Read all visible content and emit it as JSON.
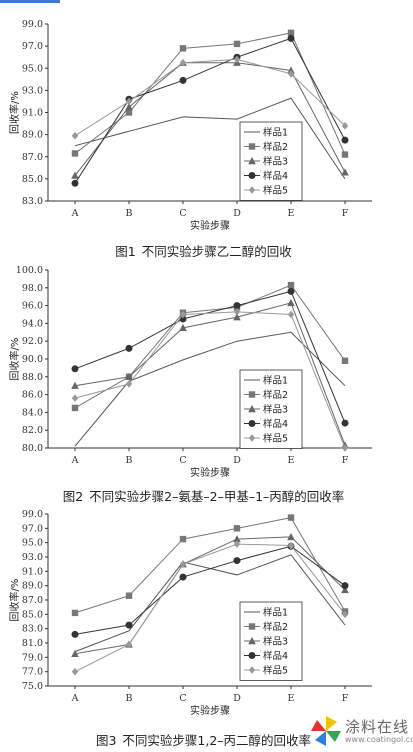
{
  "figures": [
    {
      "caption_num": "图1",
      "caption_text": "不同实验步骤乙二醇的回收"
    },
    {
      "caption_num": "图2",
      "caption_text": "不同实验步骤2–氨基–2–甲基–1–丙醇的回收率"
    },
    {
      "caption_num": "图3",
      "caption_text": "不同实验步骤1,2–丙二醇的回收率"
    }
  ],
  "watermark": {
    "text": "涂料在线",
    "url": "www.coatingol.com"
  },
  "chart_data": [
    {
      "type": "line",
      "xlabel": "实验步骤",
      "ylabel": "回收率/%",
      "categories": [
        "A",
        "B",
        "C",
        "D",
        "E",
        "F"
      ],
      "ylim": [
        83.0,
        99.0
      ],
      "yticks": [
        "83.0",
        "85.0",
        "87.0",
        "89.0",
        "91.0",
        "93.0",
        "95.0",
        "97.0",
        "99.0"
      ],
      "legend_position": "bottom-right",
      "series": [
        {
          "name": "样品1",
          "color": "#555555",
          "marker": "none",
          "values": [
            88.0,
            89.3,
            90.6,
            90.4,
            92.3,
            85.0
          ]
        },
        {
          "name": "样品2",
          "color": "#777777",
          "marker": "square",
          "values": [
            87.3,
            91.0,
            96.8,
            97.2,
            98.2,
            87.2
          ]
        },
        {
          "name": "样品3",
          "color": "#666666",
          "marker": "triangle",
          "values": [
            85.3,
            91.5,
            95.5,
            95.5,
            94.8,
            85.6
          ]
        },
        {
          "name": "样品4",
          "color": "#333333",
          "marker": "circle",
          "values": [
            84.6,
            92.2,
            93.9,
            96.0,
            97.7,
            88.5
          ]
        },
        {
          "name": "样品5",
          "color": "#999999",
          "marker": "diamond",
          "values": [
            88.9,
            92.0,
            95.5,
            95.8,
            94.5,
            89.8
          ]
        }
      ]
    },
    {
      "type": "line",
      "xlabel": "实验步骤",
      "ylabel": "回收率/%",
      "categories": [
        "A",
        "B",
        "C",
        "D",
        "E",
        "F"
      ],
      "ylim": [
        80.0,
        100.0
      ],
      "yticks": [
        "80.0",
        "82.0",
        "84.0",
        "86.0",
        "88.0",
        "90.0",
        "92.0",
        "94.0",
        "96.0",
        "98.0",
        "100.0"
      ],
      "legend_position": "bottom-right",
      "series": [
        {
          "name": "样品1",
          "color": "#555555",
          "marker": "none",
          "values": [
            80.2,
            87.5,
            89.9,
            92.0,
            93.0,
            87.0
          ]
        },
        {
          "name": "样品2",
          "color": "#777777",
          "marker": "square",
          "values": [
            84.5,
            88.0,
            95.2,
            95.8,
            98.3,
            89.8
          ]
        },
        {
          "name": "样品3",
          "color": "#666666",
          "marker": "triangle",
          "values": [
            87.0,
            88.0,
            93.5,
            94.7,
            96.3,
            80.3
          ]
        },
        {
          "name": "样品4",
          "color": "#333333",
          "marker": "circle",
          "values": [
            88.9,
            91.2,
            94.5,
            96.0,
            97.6,
            82.8
          ]
        },
        {
          "name": "样品5",
          "color": "#999999",
          "marker": "diamond",
          "values": [
            85.6,
            87.2,
            95.0,
            95.3,
            95.0,
            80.0
          ]
        }
      ]
    },
    {
      "type": "line",
      "xlabel": "实验步骤",
      "ylabel": "回收率/%",
      "categories": [
        "A",
        "B",
        "C",
        "D",
        "E",
        "F"
      ],
      "ylim": [
        75.0,
        99.0
      ],
      "yticks": [
        "75.0",
        "77.0",
        "79.0",
        "81.0",
        "83.0",
        "85.0",
        "87.0",
        "89.0",
        "91.0",
        "93.0",
        "95.0",
        "97.0",
        "99.0"
      ],
      "legend_position": "bottom-right",
      "series": [
        {
          "name": "样品1",
          "color": "#555555",
          "marker": "none",
          "values": [
            79.8,
            82.7,
            92.3,
            90.5,
            93.3,
            83.5
          ]
        },
        {
          "name": "样品2",
          "color": "#777777",
          "marker": "square",
          "values": [
            85.2,
            87.6,
            95.5,
            97.0,
            98.5,
            85.4
          ]
        },
        {
          "name": "样品3",
          "color": "#666666",
          "marker": "triangle",
          "values": [
            79.5,
            80.8,
            92.0,
            95.5,
            95.8,
            88.4
          ]
        },
        {
          "name": "样品4",
          "color": "#333333",
          "marker": "circle",
          "values": [
            82.2,
            83.5,
            90.2,
            92.5,
            94.5,
            89.0
          ]
        },
        {
          "name": "样品5",
          "color": "#999999",
          "marker": "diamond",
          "values": [
            77.0,
            80.8,
            92.0,
            94.8,
            94.6,
            85.0
          ]
        }
      ]
    }
  ]
}
